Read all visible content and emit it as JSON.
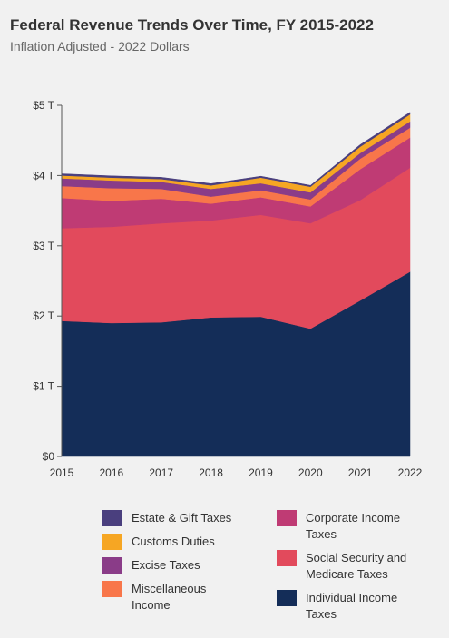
{
  "title": "Federal Revenue Trends Over Time, FY 2015-2022",
  "subtitle": "Inflation Adjusted - 2022 Dollars",
  "chart_data": {
    "type": "area",
    "stacked": true,
    "x": [
      2015,
      2016,
      2017,
      2018,
      2019,
      2020,
      2021,
      2022
    ],
    "ylim": [
      0,
      5
    ],
    "yticks": [
      0,
      1,
      2,
      3,
      4,
      5
    ],
    "ytick_labels": [
      "$0",
      "$1 T",
      "$2 T",
      "$3 T",
      "$4 T",
      "$5 T"
    ],
    "legend_position": "bottom",
    "series": [
      {
        "name": "Individual Income Taxes",
        "color": "#142d58",
        "values": [
          1.93,
          1.9,
          1.91,
          1.98,
          1.99,
          1.82,
          2.22,
          2.63
        ]
      },
      {
        "name": "Social Security and Medicare Taxes",
        "color": "#e24a5c",
        "values": [
          1.32,
          1.37,
          1.41,
          1.38,
          1.45,
          1.5,
          1.43,
          1.48
        ]
      },
      {
        "name": "Corporate Income Taxes",
        "color": "#bf3b74",
        "values": [
          0.43,
          0.37,
          0.35,
          0.24,
          0.25,
          0.24,
          0.44,
          0.43
        ]
      },
      {
        "name": "Miscellaneous Income",
        "color": "#f8764a",
        "values": [
          0.17,
          0.18,
          0.14,
          0.1,
          0.1,
          0.1,
          0.15,
          0.14
        ]
      },
      {
        "name": "Excise Taxes",
        "color": "#8a3c88",
        "values": [
          0.11,
          0.11,
          0.1,
          0.11,
          0.1,
          0.1,
          0.08,
          0.09
        ]
      },
      {
        "name": "Customs Duties",
        "color": "#f6a623",
        "values": [
          0.04,
          0.04,
          0.04,
          0.05,
          0.08,
          0.08,
          0.09,
          0.1
        ]
      },
      {
        "name": "Estate & Gift Taxes",
        "color": "#4a3f7e",
        "values": [
          0.025,
          0.025,
          0.025,
          0.025,
          0.02,
          0.02,
          0.03,
          0.03
        ]
      }
    ]
  },
  "legend": {
    "left": [
      {
        "label": "Estate & Gift Taxes",
        "color": "#4a3f7e"
      },
      {
        "label": "Customs Duties",
        "color": "#f6a623"
      },
      {
        "label": "Excise Taxes",
        "color": "#8a3c88"
      },
      {
        "label": "Miscellaneous Income",
        "color": "#f8764a"
      }
    ],
    "right": [
      {
        "label": "Corporate Income Taxes",
        "color": "#bf3b74"
      },
      {
        "label": "Social Security and Medicare Taxes",
        "color": "#e24a5c"
      },
      {
        "label": "Individual Income Taxes",
        "color": "#142d58"
      }
    ]
  }
}
